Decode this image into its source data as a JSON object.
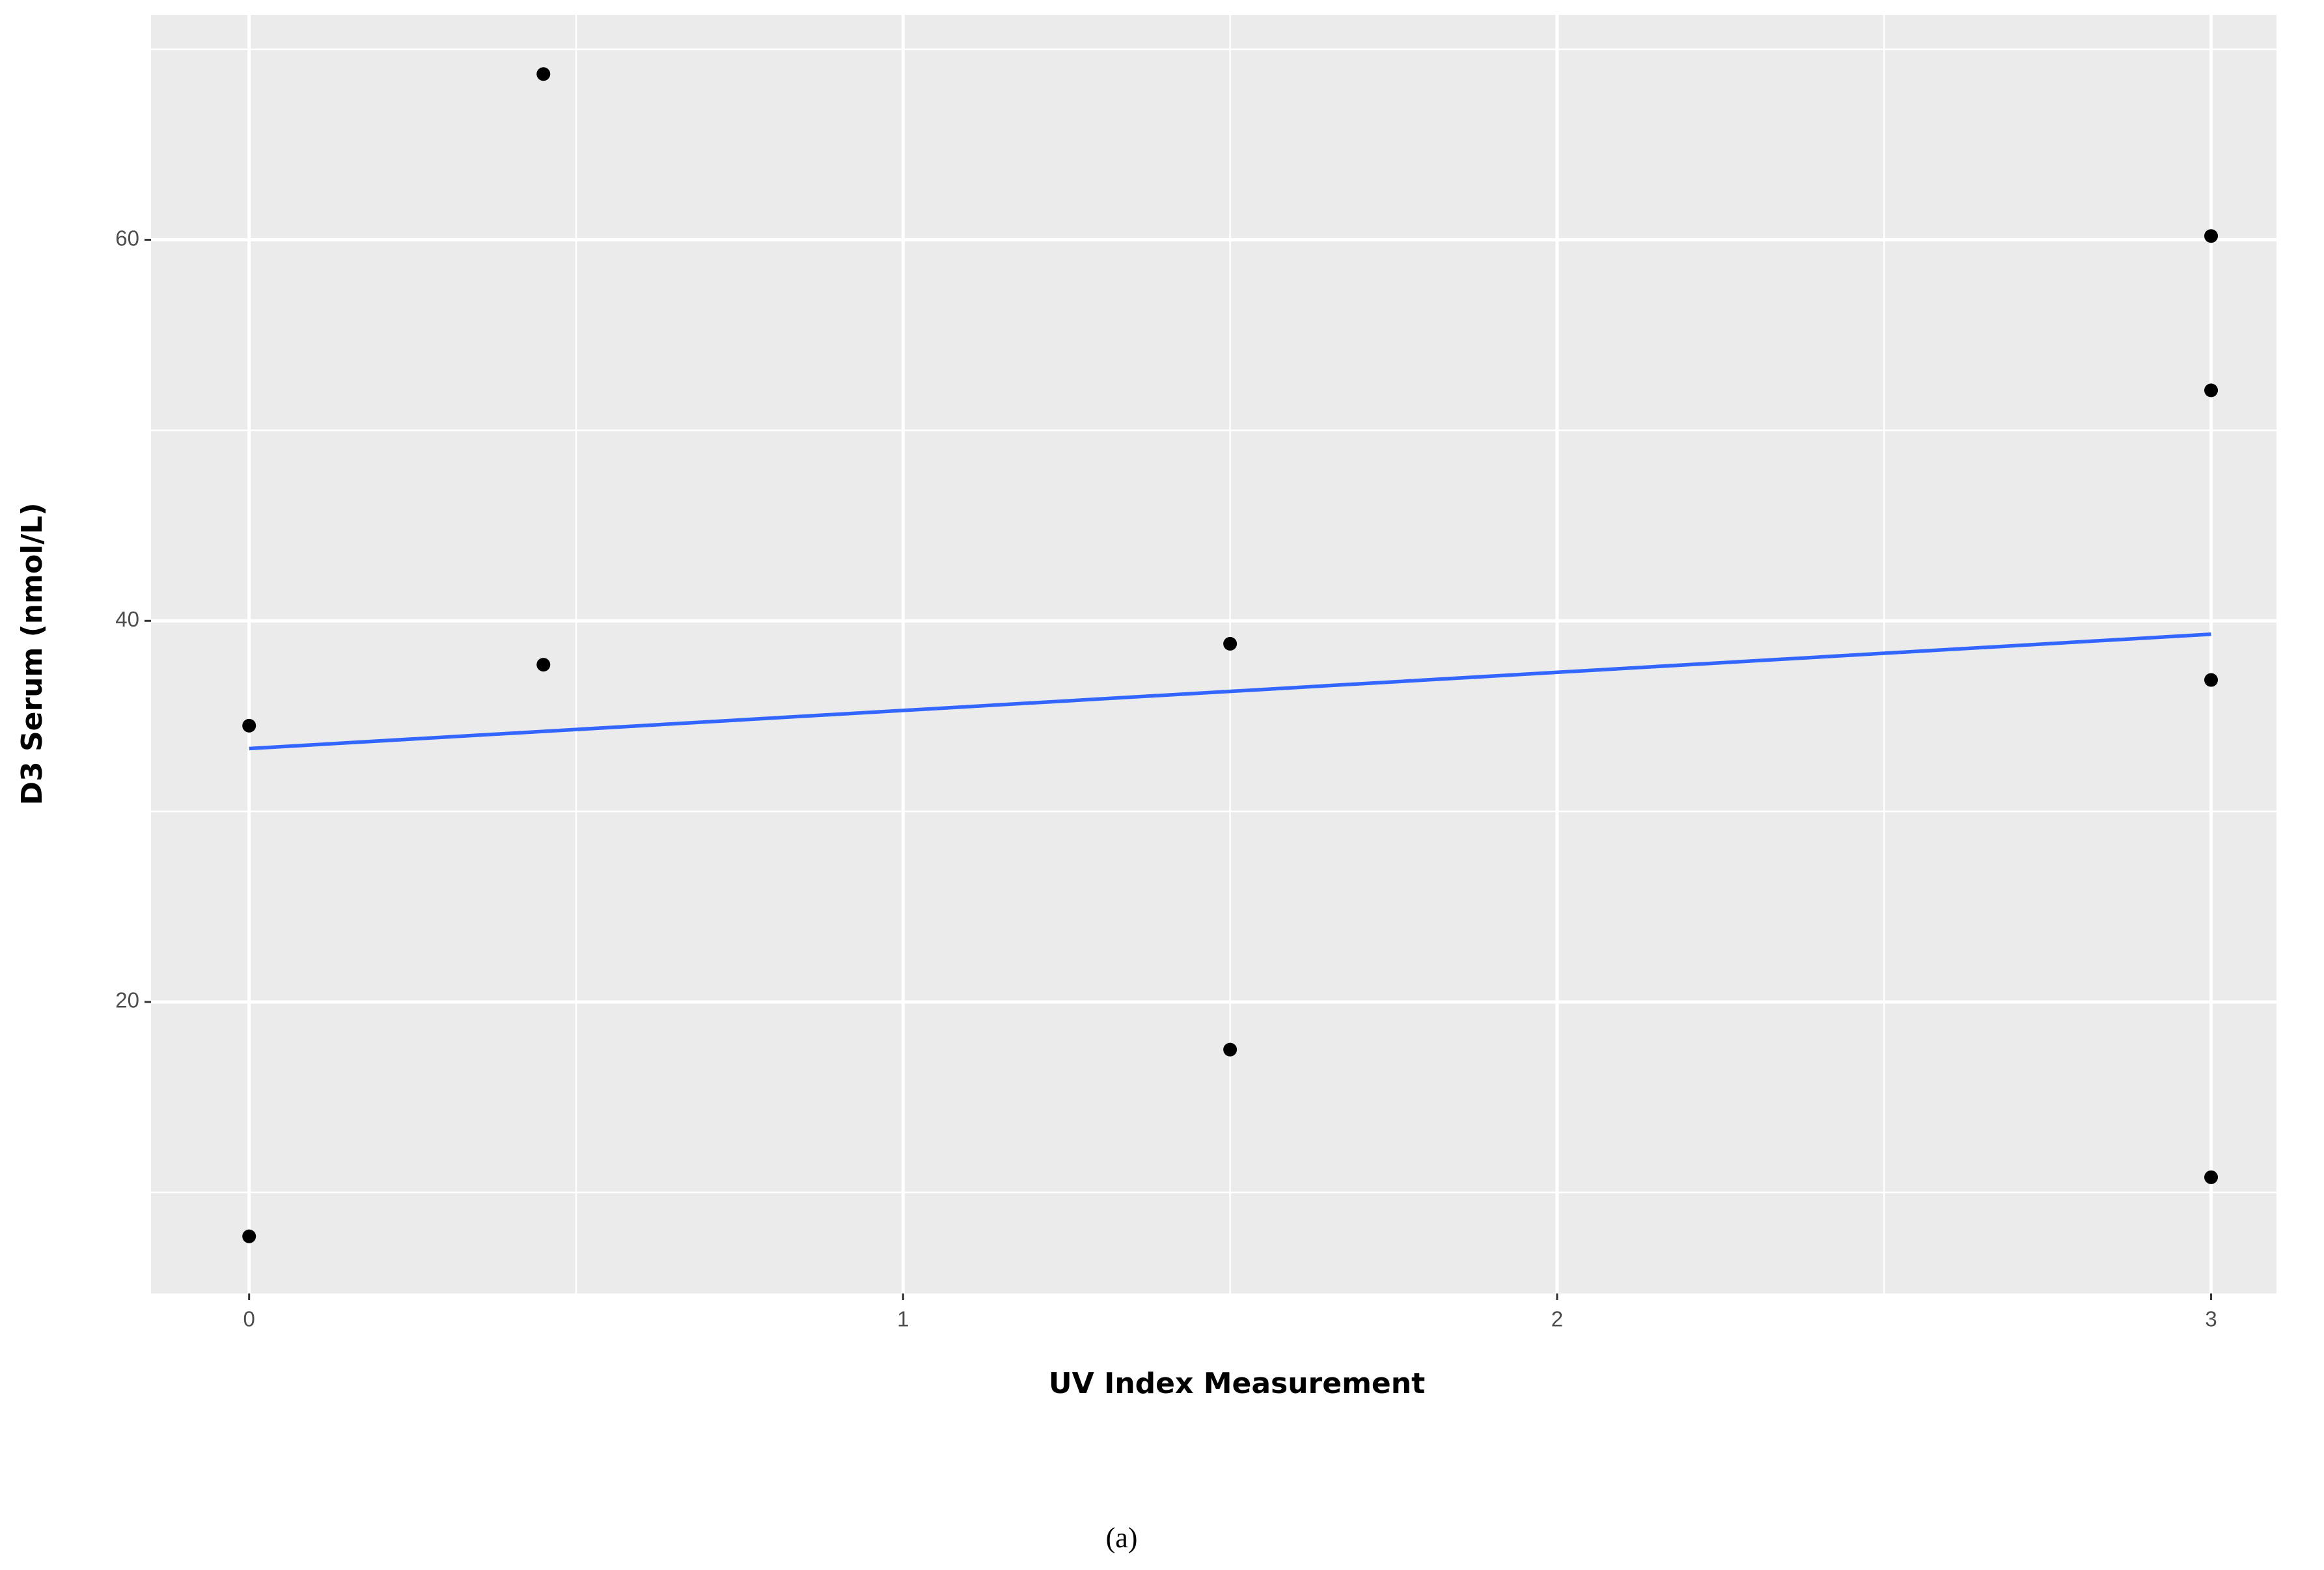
{
  "chart_data": {
    "type": "scatter",
    "xlabel": "UV Index Measurement",
    "ylabel": "D3 Serum (nmol/L)",
    "caption": "(a)",
    "x": [
      0,
      0,
      0.45,
      0.45,
      1.5,
      1.5,
      3,
      3,
      3,
      3
    ],
    "values": [
      34.5,
      7.7,
      68.7,
      37.7,
      38.8,
      17.5,
      60.2,
      52.1,
      36.9,
      10.8
    ],
    "color": "#000000",
    "trend": {
      "x": [
        0,
        3
      ],
      "values": [
        33.3,
        39.3
      ],
      "color": "#3366FF"
    },
    "xlim": [
      -0.15,
      3.1
    ],
    "ylim": [
      4.7,
      71.8
    ],
    "xticks": [
      0,
      1,
      2,
      3
    ],
    "yticks": [
      20,
      40,
      60
    ],
    "minor_xticks": [
      0.5,
      1.5,
      2.5
    ],
    "minor_yticks": [
      10,
      30,
      50,
      70
    ],
    "grid": true,
    "panel_color": "#ebebeb"
  }
}
